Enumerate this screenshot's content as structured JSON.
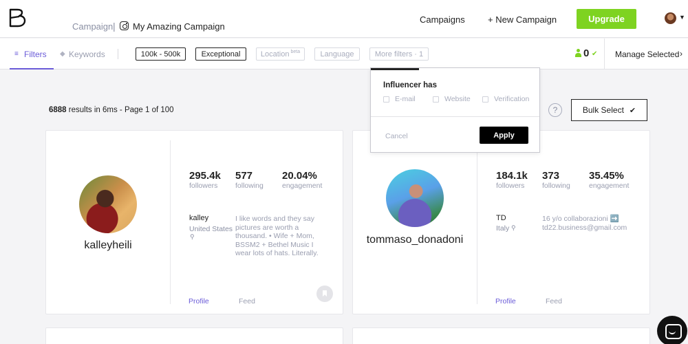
{
  "header": {
    "breadcrumb_campaign": "Campaign",
    "breadcrumb_separator": "|",
    "campaign_name": "My Amazing Campaign",
    "nav_campaigns": "Campaigns",
    "nav_new_campaign": "+ New Campaign",
    "upgrade_label": "Upgrade",
    "accent_color": "#7ed321"
  },
  "filterbar": {
    "tab_filters": "Filters",
    "tab_keywords": "Keywords",
    "chips": {
      "followers": "100k - 500k",
      "quality": "Exceptional",
      "location": "Location",
      "location_badge": "beta",
      "language": "Language",
      "more_filters": "More filters · 1"
    },
    "selected_count": "0",
    "manage_selected": "Manage Selected",
    "active_color": "#6a5bd8"
  },
  "results": {
    "count": "6888",
    "summary": "results in 6ms - Page 1 of 100",
    "help": "?",
    "bulk_select": "Bulk Select",
    "bulk_check": "✔"
  },
  "popover": {
    "title": "Influencer has",
    "options": [
      "E-mail",
      "Website",
      "Verification"
    ],
    "cancel": "Cancel",
    "apply": "Apply"
  },
  "cards": [
    {
      "username": "kalleyheili",
      "followers": "295.4k",
      "followers_label": "followers",
      "following": "577",
      "following_label": "following",
      "engagement": "20.04%",
      "engagement_label": "engagement",
      "nickname": "kalley",
      "location": "United States",
      "bio": "I like words and they say pictures are worth a thousand. • Wife + Mom, BSSM2 + Bethel Music I wear lots of hats. Literally.",
      "profile_link": "Profile",
      "feed_link": "Feed"
    },
    {
      "username": "tommaso_donadoni",
      "followers": "184.1k",
      "followers_label": "followers",
      "following": "373",
      "following_label": "following",
      "engagement": "35.45%",
      "engagement_label": "engagement",
      "nickname": "TD",
      "location": "Italy",
      "bio": "16 y/o collaborazioni ➡️ td22.business@gmail.com",
      "profile_link": "Profile",
      "feed_link": "Feed"
    }
  ]
}
